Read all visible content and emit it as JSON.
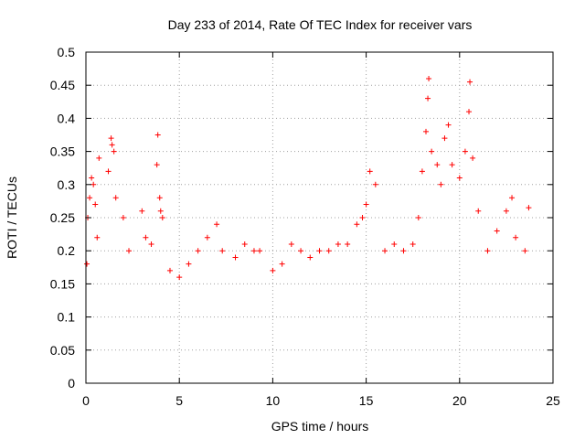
{
  "chart_data": {
    "type": "scatter",
    "title": "Day 233 of 2014, Rate Of TEC Index for receiver vars",
    "xlabel": "GPS time / hours",
    "ylabel": "ROTI / TECUs",
    "xlim": [
      0,
      25
    ],
    "ylim": [
      0,
      0.5
    ],
    "x_ticks": [
      0,
      5,
      10,
      15,
      20,
      25
    ],
    "x_tick_labels": [
      "0",
      "5",
      "10",
      "15",
      "20",
      "25"
    ],
    "y_ticks": [
      0,
      0.05,
      0.1,
      0.15,
      0.2,
      0.25,
      0.3,
      0.35,
      0.4,
      0.45,
      0.5
    ],
    "y_tick_labels": [
      "0",
      "0.05",
      "0.1",
      "0.15",
      "0.2",
      "0.25",
      "0.3",
      "0.35",
      "0.4",
      "0.45",
      "0.5"
    ],
    "grid": true,
    "marker": "+",
    "color": "#ff0000",
    "data_x_range": [
      0,
      23.8
    ],
    "series": [
      {
        "name": "ROTI",
        "points": [
          [
            0.05,
            0.18
          ],
          [
            0.1,
            0.25
          ],
          [
            0.2,
            0.28
          ],
          [
            0.3,
            0.31
          ],
          [
            0.4,
            0.3
          ],
          [
            0.5,
            0.27
          ],
          [
            0.6,
            0.22
          ],
          [
            0.7,
            0.34
          ],
          [
            1.2,
            0.32
          ],
          [
            1.35,
            0.37
          ],
          [
            1.4,
            0.36
          ],
          [
            1.5,
            0.35
          ],
          [
            1.6,
            0.28
          ],
          [
            2.0,
            0.25
          ],
          [
            2.3,
            0.2
          ],
          [
            3.0,
            0.26
          ],
          [
            3.2,
            0.22
          ],
          [
            3.5,
            0.21
          ],
          [
            3.8,
            0.33
          ],
          [
            3.85,
            0.375
          ],
          [
            3.95,
            0.28
          ],
          [
            4.0,
            0.26
          ],
          [
            4.1,
            0.25
          ],
          [
            4.5,
            0.17
          ],
          [
            5.0,
            0.16
          ],
          [
            5.5,
            0.18
          ],
          [
            6.0,
            0.2
          ],
          [
            6.5,
            0.22
          ],
          [
            7.0,
            0.24
          ],
          [
            7.3,
            0.2
          ],
          [
            8.0,
            0.19
          ],
          [
            8.5,
            0.21
          ],
          [
            9.0,
            0.2
          ],
          [
            9.3,
            0.2
          ],
          [
            10.0,
            0.17
          ],
          [
            10.5,
            0.18
          ],
          [
            11.0,
            0.21
          ],
          [
            11.5,
            0.2
          ],
          [
            12.0,
            0.19
          ],
          [
            12.5,
            0.2
          ],
          [
            13.0,
            0.2
          ],
          [
            13.5,
            0.21
          ],
          [
            14.0,
            0.21
          ],
          [
            14.5,
            0.24
          ],
          [
            14.8,
            0.25
          ],
          [
            15.0,
            0.27
          ],
          [
            15.2,
            0.32
          ],
          [
            15.5,
            0.3
          ],
          [
            16.0,
            0.2
          ],
          [
            16.5,
            0.21
          ],
          [
            17.0,
            0.2
          ],
          [
            17.5,
            0.21
          ],
          [
            17.8,
            0.25
          ],
          [
            18.0,
            0.32
          ],
          [
            18.2,
            0.38
          ],
          [
            18.3,
            0.43
          ],
          [
            18.35,
            0.46
          ],
          [
            18.5,
            0.35
          ],
          [
            18.8,
            0.33
          ],
          [
            19.0,
            0.3
          ],
          [
            19.2,
            0.37
          ],
          [
            19.4,
            0.39
          ],
          [
            19.6,
            0.33
          ],
          [
            20.0,
            0.31
          ],
          [
            20.3,
            0.35
          ],
          [
            20.5,
            0.41
          ],
          [
            20.55,
            0.455
          ],
          [
            20.7,
            0.34
          ],
          [
            21.0,
            0.26
          ],
          [
            21.5,
            0.2
          ],
          [
            22.0,
            0.23
          ],
          [
            22.5,
            0.26
          ],
          [
            22.8,
            0.28
          ],
          [
            23.0,
            0.22
          ],
          [
            23.5,
            0.2
          ],
          [
            23.7,
            0.265
          ]
        ]
      }
    ]
  }
}
